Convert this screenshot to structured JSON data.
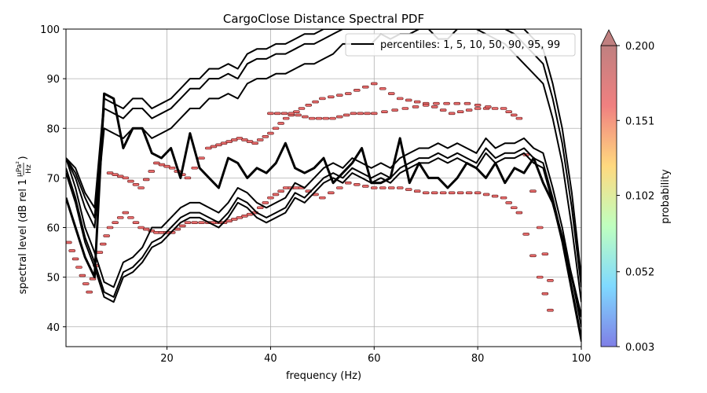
{
  "chart_data": {
    "type": "line",
    "title": "CargoClose Distance Spectral PDF",
    "xlabel": "frequency (Hz)",
    "ylabel": "spectral level (dB rel 1",
    "ylabel_unit_num": "µPa²",
    "ylabel_unit_den": "Hz",
    "ylabel_close": ")",
    "xlim": [
      0.5,
      100
    ],
    "ylim": [
      36,
      100
    ],
    "xticks": [
      20,
      40,
      60,
      80,
      100
    ],
    "yticks": [
      40,
      50,
      60,
      70,
      80,
      90,
      100
    ],
    "grid": true,
    "legend": {
      "label": "percentiles: 1, 5, 10, 50, 90, 95, 99",
      "placement": "top-right"
    },
    "colorbar": {
      "label": "probability",
      "ticks": [
        "0.003",
        "0.052",
        "0.102",
        "0.151",
        "0.200"
      ],
      "tick_values": [
        0.003,
        0.052,
        0.102,
        0.151,
        0.2
      ],
      "min": 0.003,
      "max": 0.2,
      "extend": "max",
      "colors": [
        "#7f7fe6",
        "#7fd9ff",
        "#bfffbf",
        "#ffd97f",
        "#f08080",
        "#c08080"
      ]
    },
    "pdf_ridges": [
      {
        "x": [
          9,
          12,
          15,
          18,
          21,
          24,
          28,
          31,
          34,
          37,
          40,
          43,
          46,
          50,
          55,
          60,
          65,
          70,
          75,
          80,
          85,
          88,
          92,
          95
        ],
        "y": [
          71,
          70,
          68,
          73,
          72,
          70,
          76,
          77,
          78,
          77,
          79,
          82,
          84,
          86,
          87,
          89,
          86,
          85,
          83,
          84,
          84,
          82,
          60,
          44
        ]
      },
      {
        "x": [
          1,
          3,
          5,
          7,
          9,
          12,
          15,
          18,
          21,
          24,
          28,
          31,
          34,
          37,
          40,
          43,
          46,
          50,
          55,
          60,
          65,
          70,
          75,
          80,
          85,
          88,
          92,
          95
        ],
        "y": [
          57,
          52,
          47,
          55,
          60,
          63,
          60,
          59,
          59,
          61,
          61,
          61,
          62,
          63,
          66,
          68,
          68,
          66,
          69,
          68,
          68,
          67,
          67,
          67,
          66,
          63,
          50,
          40
        ]
      },
      {
        "x": [
          40,
          44,
          48,
          52,
          56,
          60,
          66,
          72,
          78,
          84
        ],
        "y": [
          83,
          83,
          82,
          82,
          83,
          83,
          84,
          85,
          85,
          84
        ]
      }
    ],
    "series": [
      {
        "values": [
          74,
          68,
          60,
          55,
          49,
          48,
          53,
          54,
          56,
          60,
          60,
          62,
          64,
          65,
          65,
          64,
          63,
          65,
          68,
          67,
          65,
          64,
          65,
          66,
          69,
          68,
          70,
          72,
          73,
          72,
          74,
          73,
          72,
          73,
          72,
          74,
          75,
          76,
          76,
          77,
          76,
          77,
          76,
          75,
          78,
          76,
          77,
          77,
          78,
          76,
          75,
          68,
          60,
          50,
          40
        ]
      },
      {
        "values": [
          72,
          66,
          58,
          53,
          47,
          46,
          51,
          52,
          54,
          57,
          58,
          60,
          62,
          63,
          63,
          62,
          61,
          63,
          66,
          65,
          63,
          62,
          63,
          64,
          67,
          66,
          68,
          70,
          71,
          70,
          72,
          71,
          70,
          71,
          70,
          72,
          73,
          74,
          74,
          75,
          74,
          75,
          74,
          73,
          76,
          74,
          75,
          75,
          76,
          74,
          73,
          66,
          58,
          48,
          38
        ]
      },
      {
        "values": [
          71,
          65,
          57,
          52,
          46,
          45,
          50,
          51,
          53,
          56,
          57,
          59,
          61,
          62,
          62,
          61,
          60,
          62,
          65,
          64,
          62,
          61,
          62,
          63,
          66,
          65,
          67,
          69,
          70,
          69,
          71,
          70,
          69,
          70,
          69,
          71,
          72,
          73,
          73,
          74,
          73,
          74,
          73,
          72,
          75,
          73,
          74,
          74,
          75,
          73,
          72,
          65,
          57,
          47,
          37
        ]
      },
      {
        "values": [
          74,
          70,
          64,
          60,
          80,
          79,
          78,
          80,
          80,
          78,
          79,
          80,
          82,
          84,
          84,
          86,
          86,
          87,
          86,
          89,
          90,
          90,
          91,
          91,
          92,
          93,
          93,
          94,
          95,
          97,
          97,
          97,
          97,
          99,
          98,
          99,
          99,
          100,
          100,
          98,
          98,
          100,
          100,
          100,
          99,
          98,
          97,
          95,
          93,
          91,
          89,
          82,
          73,
          60,
          45
        ]
      },
      {
        "values": [
          74,
          71,
          66,
          62,
          84,
          83,
          82,
          84,
          84,
          82,
          83,
          84,
          86,
          88,
          88,
          90,
          90,
          91,
          90,
          93,
          94,
          94,
          95,
          95,
          96,
          97,
          97,
          98,
          99,
          100,
          100,
          100,
          100,
          100,
          100,
          100,
          100,
          100,
          100,
          100,
          100,
          100,
          100,
          100,
          100,
          100,
          100,
          99,
          97,
          95,
          93,
          86,
          77,
          64,
          48
        ]
      },
      {
        "values": [
          74,
          72,
          67,
          64,
          86,
          85,
          84,
          86,
          86,
          84,
          85,
          86,
          88,
          90,
          90,
          92,
          92,
          93,
          92,
          95,
          96,
          96,
          97,
          97,
          98,
          99,
          99,
          100,
          100,
          100,
          100,
          100,
          100,
          100,
          100,
          100,
          100,
          100,
          100,
          100,
          100,
          100,
          100,
          100,
          100,
          100,
          100,
          100,
          100,
          98,
          96,
          89,
          80,
          67,
          50
        ]
      }
    ],
    "median": {
      "values": [
        66,
        60,
        54,
        50,
        87,
        86,
        76,
        80,
        80,
        75,
        74,
        76,
        70,
        79,
        72,
        70,
        68,
        74,
        73,
        70,
        72,
        71,
        73,
        77,
        72,
        71,
        72,
        74,
        69,
        71,
        73,
        76,
        69,
        69,
        70,
        78,
        69,
        73,
        70,
        70,
        68,
        70,
        73,
        72,
        70,
        73,
        69,
        72,
        71,
        74,
        69,
        65,
        58,
        50,
        42
      ]
    }
  }
}
